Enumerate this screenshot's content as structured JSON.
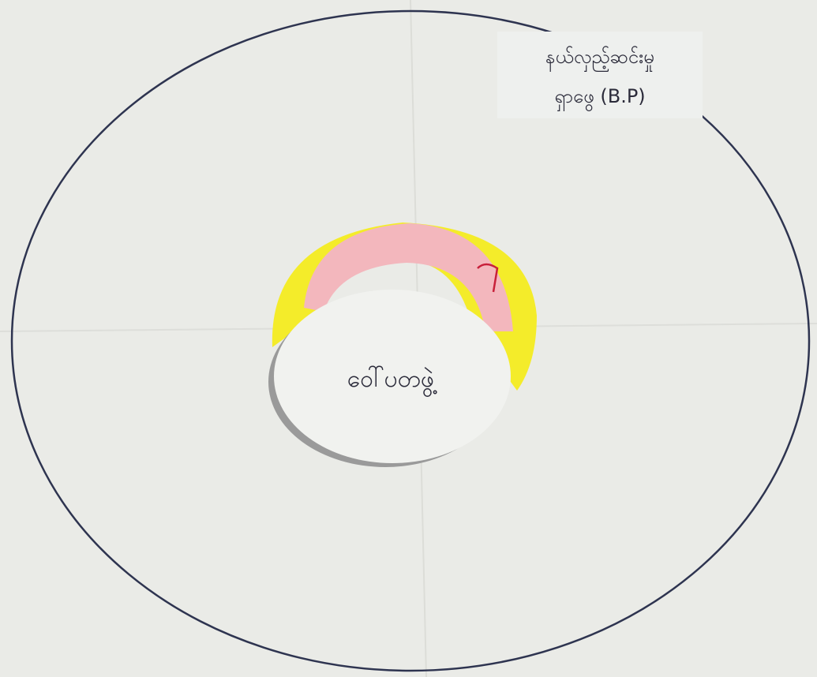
{
  "diagram": {
    "outer_label": {
      "line1": "နယ်လှည့်ဆင်းမှု",
      "line2": "ရှာဖွေ (B.P)"
    },
    "center_label": "ဝေါ်ပတဖွဲ့"
  }
}
